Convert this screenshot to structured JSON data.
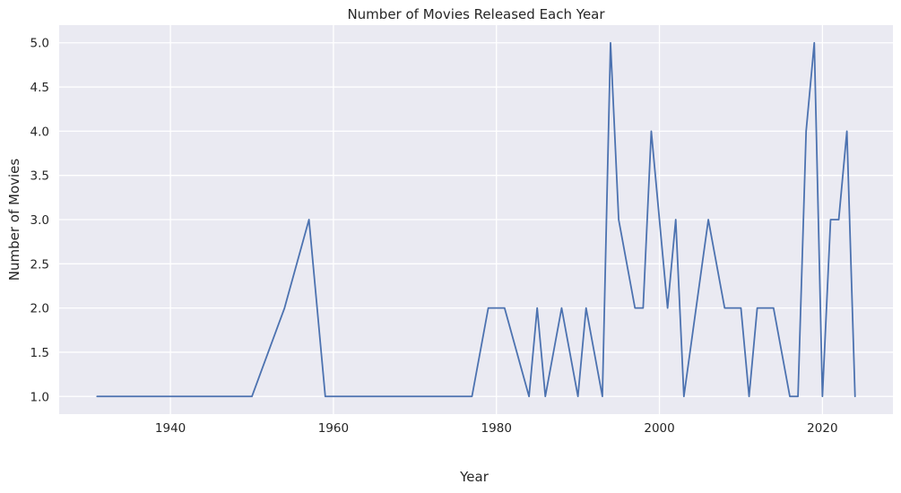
{
  "chart_data": {
    "type": "line",
    "title": "Number of Movies Released Each Year",
    "xlabel": "Year",
    "ylabel": "Number of Movies",
    "xlim": [
      1926.35,
      2028.65
    ],
    "ylim": [
      0.8,
      5.2
    ],
    "xticks": [
      1940,
      1960,
      1980,
      2000,
      2020
    ],
    "yticks": [
      1.0,
      1.5,
      2.0,
      2.5,
      3.0,
      3.5,
      4.0,
      4.5,
      5.0
    ],
    "ytick_labels": [
      "1.0",
      "1.5",
      "2.0",
      "2.5",
      "3.0",
      "3.5",
      "4.0",
      "4.5",
      "5.0"
    ],
    "grid": true,
    "legend": "none",
    "line_color": "#4c72b0",
    "background_color": "#eaeaf2",
    "series": [
      {
        "x": [
          1931,
          1950,
          1954,
          1957,
          1959,
          1977,
          1979,
          1981,
          1984,
          1985,
          1986,
          1988,
          1990,
          1991,
          1993,
          1994,
          1995,
          1997,
          1998,
          1999,
          2001,
          2002,
          2003,
          2006,
          2008,
          2010,
          2011,
          2012,
          2014,
          2016,
          2017,
          2018,
          2019,
          2020,
          2021,
          2022,
          2023,
          2024
        ],
        "y": [
          1,
          1,
          2,
          3,
          1,
          1,
          2,
          2,
          1,
          2,
          1,
          2,
          1,
          2,
          1,
          5,
          3,
          2,
          2,
          4,
          2,
          3,
          1,
          3,
          2,
          2,
          1,
          2,
          2,
          1,
          1,
          4,
          5,
          1,
          3,
          3,
          4,
          1
        ]
      }
    ]
  }
}
